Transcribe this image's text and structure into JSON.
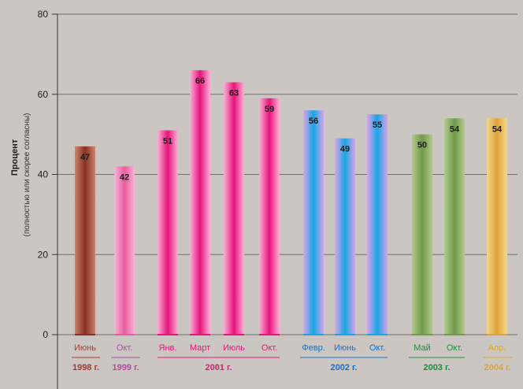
{
  "chart_data": {
    "type": "bar",
    "ylabel": "Процент",
    "ylabel_sub": "(полностью или скорее согласны)",
    "ylim": [
      0,
      80
    ],
    "yticks": [
      "0",
      "20",
      "40",
      "60",
      "80"
    ],
    "grid": true,
    "bars": [
      {
        "label": "Июнь",
        "value": 47,
        "value_label": "47",
        "group": 0
      },
      {
        "label": "Окт.",
        "value": 42,
        "value_label": "42",
        "group": 1
      },
      {
        "label": "Янв.",
        "value": 51,
        "value_label": "51",
        "group": 2
      },
      {
        "label": "Март",
        "value": 66,
        "value_label": "66",
        "group": 2
      },
      {
        "label": "Июль",
        "value": 63,
        "value_label": "63",
        "group": 2
      },
      {
        "label": "Окт.",
        "value": 59,
        "value_label": "59",
        "group": 2
      },
      {
        "label": "Февр.",
        "value": 56,
        "value_label": "56",
        "group": 3
      },
      {
        "label": "Июнь",
        "value": 49,
        "value_label": "49",
        "group": 3
      },
      {
        "label": "Окт.",
        "value": 55,
        "value_label": "55",
        "group": 3
      },
      {
        "label": "Май",
        "value": 50,
        "value_label": "50",
        "group": 4
      },
      {
        "label": "Окт.",
        "value": 54,
        "value_label": "54",
        "group": 4
      },
      {
        "label": "Апр.",
        "value": 54,
        "value_label": "54",
        "group": 5
      }
    ],
    "groups": [
      {
        "year": "1998 г.",
        "color": "#a33a2c",
        "light": "#c9866f",
        "dark": "#8a2e22"
      },
      {
        "year": "1999 г.",
        "color": "#b04aa0",
        "light": "#f7b6d6",
        "dark": "#ea5aa0"
      },
      {
        "year": "2001 г.",
        "color": "#e0187a",
        "light": "#fbb0d6",
        "dark": "#e6137a"
      },
      {
        "year": "2002 г.",
        "color": "#1a6fc0",
        "light": "#d8a4e8",
        "dark": "#18a6e6"
      },
      {
        "year": "2003 г.",
        "color": "#1e8a3e",
        "light": "#b3ca8e",
        "dark": "#6f9a48"
      },
      {
        "year": "2004 г.",
        "color": "#d9a52a",
        "light": "#f6d88a",
        "dark": "#dca23a"
      }
    ],
    "label_colors": [
      "#a33a2c",
      "#b04aa0",
      "#e0187a",
      "#1a6fc0",
      "#1e8a3e",
      "#d9a52a"
    ]
  }
}
